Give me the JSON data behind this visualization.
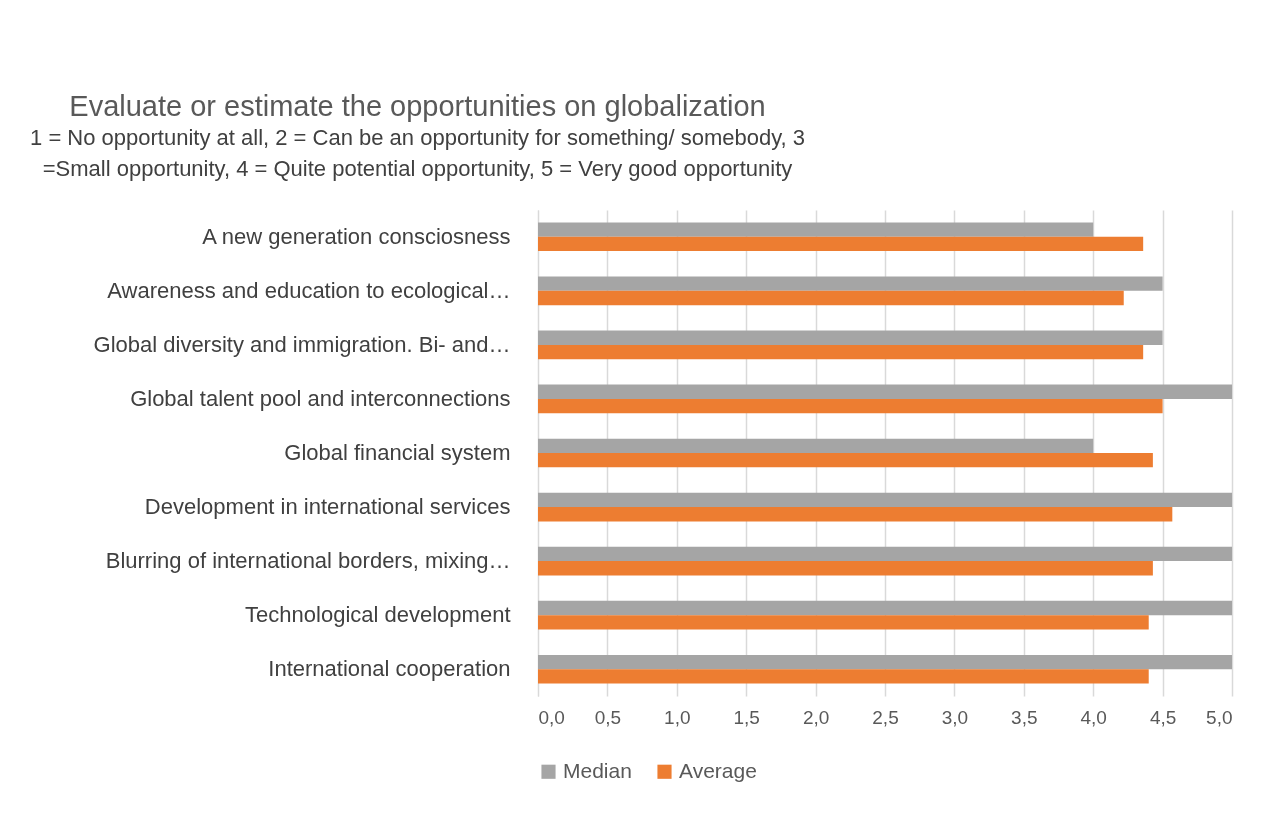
{
  "chart_data": {
    "type": "bar",
    "orientation": "horizontal",
    "title": "Evaluate or estimate the opportunities on globalization",
    "subtitle": "1 = No opportunity at all, 2 = Can be an opportunity for something/ somebody, 3 =Small opportunity, 4 = Quite potential opportunity, 5 = Very good opportunity",
    "categories": [
      "A new generation consciosness",
      "Awareness and education to ecological…",
      "Global diversity and immigration. Bi- and…",
      "Global talent pool and interconnections",
      "Global financial system",
      "Development in international services",
      "Blurring of international borders, mixing…",
      "Technological development",
      "International cooperation"
    ],
    "series": [
      {
        "name": "Median",
        "color": "#a5a5a5",
        "values": [
          4.0,
          4.5,
          4.5,
          5.0,
          4.0,
          5.0,
          5.0,
          5.0,
          5.0
        ]
      },
      {
        "name": "Average",
        "color": "#ed7d31",
        "values": [
          4.36,
          4.22,
          4.36,
          4.5,
          4.43,
          4.57,
          4.43,
          4.4,
          4.4
        ]
      }
    ],
    "xlim": [
      0,
      5
    ],
    "xticks": [
      {
        "value": 0,
        "label": "0,0"
      },
      {
        "value": 0.5,
        "label": "0,5"
      },
      {
        "value": 1,
        "label": "1,0"
      },
      {
        "value": 1.5,
        "label": "1,5"
      },
      {
        "value": 2,
        "label": "2,0"
      },
      {
        "value": 2.5,
        "label": "2,5"
      },
      {
        "value": 3,
        "label": "3,0"
      },
      {
        "value": 3.5,
        "label": "3,5"
      },
      {
        "value": 4,
        "label": "4,0"
      },
      {
        "value": 4.5,
        "label": "4,5"
      },
      {
        "value": 5,
        "label": "5,0"
      }
    ],
    "grid": "x",
    "legend": "bottom"
  }
}
